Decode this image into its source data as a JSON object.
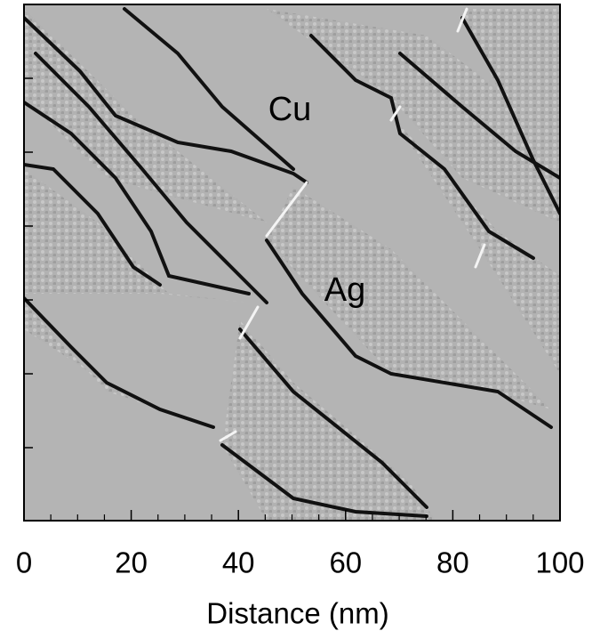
{
  "chart_data": {
    "type": "image",
    "xlabel": "Distance (nm)",
    "xlim": [
      0,
      100
    ],
    "xticks": [
      0,
      20,
      40,
      60,
      80,
      100
    ],
    "annotations": [
      "Cu",
      "Ag"
    ]
  }
}
